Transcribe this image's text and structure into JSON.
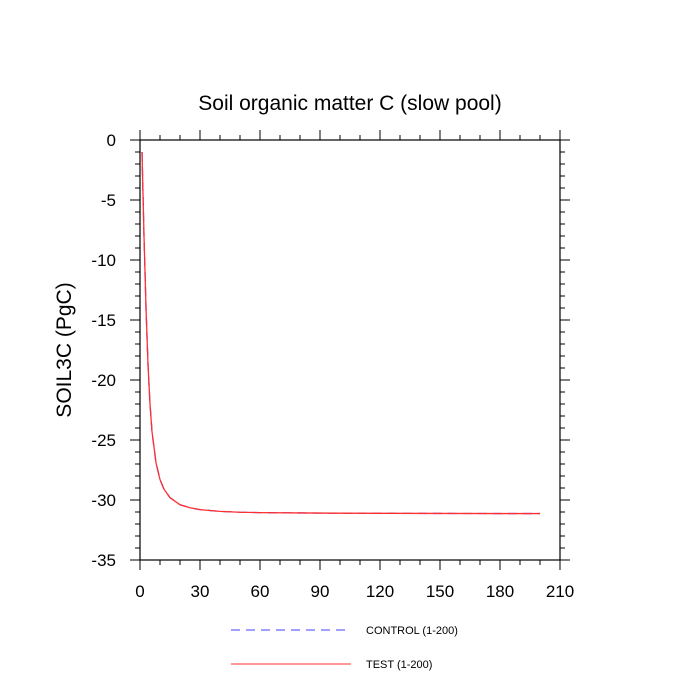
{
  "chart_data": {
    "type": "line",
    "title": "Soil organic matter C (slow pool)",
    "xlabel": "",
    "ylabel": "SOIL3C  (PgC)",
    "xlim": [
      0,
      210
    ],
    "ylim": [
      -35,
      0
    ],
    "xticks": [
      "0",
      "30",
      "60",
      "90",
      "120",
      "150",
      "180",
      "210"
    ],
    "yticks": [
      "0",
      "-5",
      "-10",
      "-15",
      "-20",
      "-25",
      "-30",
      "-35"
    ],
    "grid": false,
    "legend_position": "bottom",
    "series": [
      {
        "name": "CONTROL (1-200)",
        "color": "#4040ff",
        "style": "dashed",
        "x": [
          1,
          2,
          3,
          4,
          5,
          6,
          8,
          10,
          12,
          15,
          20,
          25,
          30,
          40,
          50,
          60,
          80,
          100,
          120,
          150,
          180,
          200
        ],
        "y": [
          -1.0,
          -8.0,
          -14.0,
          -18.7,
          -22.0,
          -24.3,
          -26.9,
          -28.3,
          -29.1,
          -29.8,
          -30.4,
          -30.65,
          -30.8,
          -30.95,
          -31.02,
          -31.05,
          -31.08,
          -31.1,
          -31.11,
          -31.12,
          -31.13,
          -31.13
        ]
      },
      {
        "name": "TEST (1-200)",
        "color": "#ff3030",
        "style": "solid",
        "x": [
          1,
          2,
          3,
          4,
          5,
          6,
          8,
          10,
          12,
          15,
          20,
          25,
          30,
          40,
          50,
          60,
          80,
          100,
          120,
          150,
          180,
          200
        ],
        "y": [
          -1.0,
          -8.0,
          -14.0,
          -18.7,
          -22.0,
          -24.3,
          -26.9,
          -28.3,
          -29.1,
          -29.8,
          -30.4,
          -30.65,
          -30.8,
          -30.95,
          -31.02,
          -31.05,
          -31.08,
          -31.1,
          -31.11,
          -31.12,
          -31.13,
          -31.13
        ]
      }
    ]
  }
}
